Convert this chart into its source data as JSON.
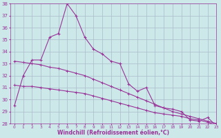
{
  "x": [
    0,
    1,
    2,
    3,
    4,
    5,
    6,
    7,
    8,
    9,
    10,
    11,
    12,
    13,
    14,
    15,
    16,
    17,
    18,
    19,
    20,
    21,
    22,
    23
  ],
  "y_main": [
    29.5,
    32.0,
    33.3,
    33.3,
    35.2,
    35.5,
    38.0,
    37.0,
    35.2,
    34.2,
    33.8,
    33.2,
    33.0,
    31.3,
    30.7,
    31.0,
    29.5,
    29.3,
    29.2,
    29.0,
    28.3,
    28.2,
    28.5,
    27.8
  ],
  "y_trend1": [
    33.2,
    33.1,
    33.0,
    32.9,
    32.7,
    32.6,
    32.4,
    32.2,
    32.0,
    31.7,
    31.4,
    31.1,
    30.8,
    30.5,
    30.2,
    29.9,
    29.6,
    29.3,
    29.0,
    28.8,
    28.6,
    28.4,
    28.2,
    28.0
  ],
  "y_trend2": [
    31.2,
    31.1,
    31.1,
    31.0,
    30.9,
    30.8,
    30.7,
    30.6,
    30.5,
    30.3,
    30.1,
    29.9,
    29.7,
    29.5,
    29.3,
    29.1,
    28.9,
    28.8,
    28.7,
    28.6,
    28.4,
    28.3,
    28.1,
    27.9
  ],
  "line_color": "#993399",
  "bg_color": "#cce8e8",
  "grid_color": "#aabbcc",
  "xlabel": "Windchill (Refroidissement éolien,°C)",
  "ylim": [
    28,
    38
  ],
  "xlim": [
    -0.5,
    23
  ],
  "yticks": [
    28,
    29,
    30,
    31,
    32,
    33,
    34,
    35,
    36,
    37,
    38
  ],
  "xticks": [
    0,
    1,
    2,
    3,
    4,
    5,
    6,
    7,
    8,
    9,
    10,
    11,
    12,
    13,
    14,
    15,
    16,
    17,
    18,
    19,
    20,
    21,
    22,
    23
  ]
}
